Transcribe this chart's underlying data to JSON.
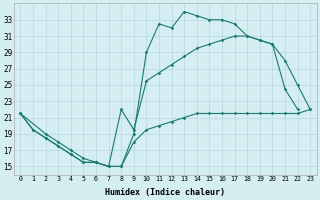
{
  "xlabel": "Humidex (Indice chaleur)",
  "bg_color": "#d4eef1",
  "grid_color": "#b8d8dd",
  "line_color": "#1a7a6e",
  "ylim": [
    14,
    35
  ],
  "xlim": [
    -0.5,
    23.5
  ],
  "yticks": [
    15,
    17,
    19,
    21,
    23,
    25,
    27,
    29,
    31,
    33
  ],
  "xticks": [
    0,
    1,
    2,
    3,
    4,
    5,
    6,
    7,
    8,
    9,
    10,
    11,
    12,
    13,
    14,
    15,
    16,
    17,
    18,
    19,
    20,
    21,
    22,
    23
  ],
  "series": [
    {
      "x": [
        0,
        1,
        2,
        3,
        4,
        5,
        6,
        7,
        8,
        9,
        10,
        11,
        12,
        13,
        14,
        15,
        16,
        17,
        18,
        19,
        20,
        21,
        22
      ],
      "y": [
        21.5,
        19.5,
        18.5,
        17.5,
        16.5,
        15.5,
        15.5,
        15.0,
        15.0,
        19.0,
        29.0,
        32.5,
        32.0,
        34.0,
        33.5,
        33.0,
        33.0,
        32.5,
        31.0,
        30.5,
        30.0,
        24.5,
        22.0
      ]
    },
    {
      "x": [
        0,
        2,
        3,
        4,
        5,
        6,
        7,
        8,
        9,
        10,
        11,
        12,
        13,
        14,
        15,
        16,
        17,
        18,
        19,
        20,
        21,
        22,
        23
      ],
      "y": [
        21.5,
        19.0,
        18.0,
        17.0,
        16.0,
        15.5,
        15.0,
        22.0,
        19.5,
        25.5,
        26.5,
        27.5,
        28.5,
        29.5,
        30.0,
        30.5,
        31.0,
        31.0,
        30.5,
        30.0,
        28.0,
        25.0,
        22.0
      ]
    },
    {
      "x": [
        0,
        1,
        2,
        3,
        4,
        5,
        6,
        7,
        8,
        9,
        10,
        11,
        12,
        13,
        14,
        15,
        16,
        17,
        18,
        19,
        20,
        21,
        22,
        23
      ],
      "y": [
        21.5,
        19.5,
        18.5,
        17.5,
        16.5,
        15.5,
        15.5,
        15.0,
        15.0,
        18.0,
        19.5,
        20.0,
        20.5,
        21.0,
        21.5,
        21.5,
        21.5,
        21.5,
        21.5,
        21.5,
        21.5,
        21.5,
        21.5,
        22.0
      ]
    }
  ]
}
